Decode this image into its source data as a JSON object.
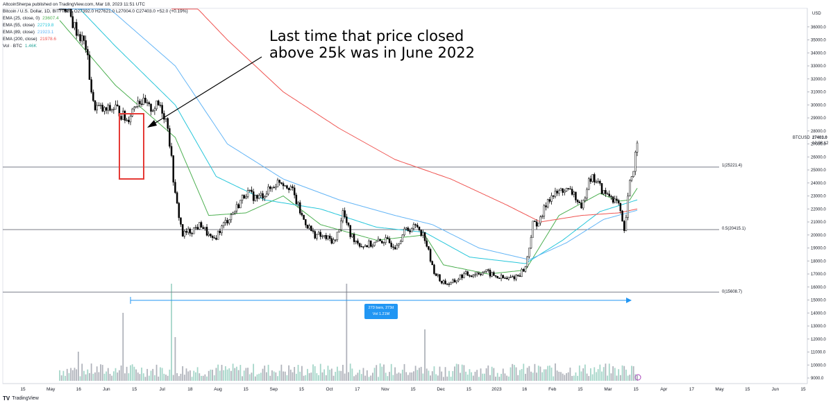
{
  "header": {
    "published_line": "AltcoinSherpa published on TradingView.com, Mar 18, 2023 11:51 UTC",
    "symbol_line": "Bitcoin / U.S. Dollar, 1D, BITFINEX  O27392.0  H27621.0  L27004.0  C27403.0  +52.0 (+0.19%)",
    "indicators": [
      {
        "label": "EMA (25, close, 0)",
        "value": "23607.4",
        "color": "#4caf50"
      },
      {
        "label": "EMA (55, close)",
        "value": "22719.8",
        "color": "#26c6da"
      },
      {
        "label": "EMA (89, close)",
        "value": "21923.1",
        "color": "#64b5f6"
      },
      {
        "label": "EMA (200, close)",
        "value": "21978.6",
        "color": "#ef5350"
      },
      {
        "label": "Vol · BTC",
        "value": "1.46K",
        "color": "#26a69a"
      }
    ]
  },
  "annotation": {
    "line1": "Last time that price closed",
    "line2": "above 25k was in June 2022"
  },
  "range_measure": {
    "line1": "273 bars, 273d",
    "line2": "Vol 1.21M"
  },
  "fib_labels": {
    "top": "1(25221.4)",
    "mid": "0.5(20415.1)",
    "bottom": "0(15608.7)"
  },
  "price_tag": {
    "symbol": "BTCUSD",
    "price": "27403.0",
    "countdown": "12:08:12"
  },
  "footer": {
    "brand": "TradingView"
  },
  "chart_data": {
    "type": "candlestick",
    "currency": "USD",
    "ylim": [
      9000,
      37000
    ],
    "y_ticks": [
      36000,
      35000,
      34000,
      33000,
      32000,
      31000,
      30000,
      29000,
      28000,
      27000,
      26000,
      25000,
      24000,
      23000,
      22000,
      21000,
      20000,
      19000,
      18000,
      17000,
      16000,
      15000,
      14000,
      13000,
      12000,
      11000,
      10000,
      9000
    ],
    "x_labels": [
      "15",
      "May",
      "16",
      "Jun",
      "15",
      "Jul",
      "18",
      "Aug",
      "15",
      "Sep",
      "15",
      "Oct",
      "17",
      "Nov",
      "15",
      "Dec",
      "15",
      "2023",
      "16",
      "Feb",
      "15",
      "Mar",
      "15",
      "Apr",
      "17",
      "May",
      "15",
      "Jun",
      "15"
    ],
    "horizontal_levels": [
      {
        "name": "1",
        "value": 25221.4
      },
      {
        "name": "0.5",
        "value": 20415.1
      },
      {
        "name": "0",
        "value": 15608.7
      }
    ],
    "price_path": [
      {
        "t": 0,
        "v": 38500
      },
      {
        "t": 8,
        "v": 36000
      },
      {
        "t": 14,
        "v": 34500
      },
      {
        "t": 18,
        "v": 30000
      },
      {
        "t": 24,
        "v": 29500
      },
      {
        "t": 30,
        "v": 29800
      },
      {
        "t": 36,
        "v": 28800
      },
      {
        "t": 42,
        "v": 30500
      },
      {
        "t": 48,
        "v": 29700
      },
      {
        "t": 54,
        "v": 30000
      },
      {
        "t": 58,
        "v": 28500
      },
      {
        "t": 62,
        "v": 23000
      },
      {
        "t": 64,
        "v": 21500
      },
      {
        "t": 66,
        "v": 20000
      },
      {
        "t": 70,
        "v": 20300
      },
      {
        "t": 76,
        "v": 20800
      },
      {
        "t": 82,
        "v": 19500
      },
      {
        "t": 88,
        "v": 20800
      },
      {
        "t": 94,
        "v": 21900
      },
      {
        "t": 100,
        "v": 23300
      },
      {
        "t": 106,
        "v": 22800
      },
      {
        "t": 112,
        "v": 23400
      },
      {
        "t": 118,
        "v": 24200
      },
      {
        "t": 124,
        "v": 23700
      },
      {
        "t": 130,
        "v": 21400
      },
      {
        "t": 136,
        "v": 20100
      },
      {
        "t": 142,
        "v": 19800
      },
      {
        "t": 148,
        "v": 19500
      },
      {
        "t": 152,
        "v": 21800
      },
      {
        "t": 156,
        "v": 20000
      },
      {
        "t": 162,
        "v": 19200
      },
      {
        "t": 168,
        "v": 19300
      },
      {
        "t": 174,
        "v": 19600
      },
      {
        "t": 180,
        "v": 19200
      },
      {
        "t": 186,
        "v": 20400
      },
      {
        "t": 192,
        "v": 20700
      },
      {
        "t": 196,
        "v": 19800
      },
      {
        "t": 200,
        "v": 17500
      },
      {
        "t": 204,
        "v": 16500
      },
      {
        "t": 210,
        "v": 16200
      },
      {
        "t": 216,
        "v": 16900
      },
      {
        "t": 222,
        "v": 17000
      },
      {
        "t": 228,
        "v": 17200
      },
      {
        "t": 234,
        "v": 16800
      },
      {
        "t": 240,
        "v": 16600
      },
      {
        "t": 246,
        "v": 16900
      },
      {
        "t": 250,
        "v": 17500
      },
      {
        "t": 254,
        "v": 20800
      },
      {
        "t": 258,
        "v": 21100
      },
      {
        "t": 262,
        "v": 22800
      },
      {
        "t": 266,
        "v": 23100
      },
      {
        "t": 270,
        "v": 23500
      },
      {
        "t": 276,
        "v": 23200
      },
      {
        "t": 280,
        "v": 21800
      },
      {
        "t": 284,
        "v": 24500
      },
      {
        "t": 288,
        "v": 24200
      },
      {
        "t": 292,
        "v": 23200
      },
      {
        "t": 296,
        "v": 23000
      },
      {
        "t": 300,
        "v": 22300
      },
      {
        "t": 303,
        "v": 20100
      },
      {
        "t": 306,
        "v": 24000
      },
      {
        "t": 308,
        "v": 25100
      },
      {
        "t": 310,
        "v": 27403
      }
    ],
    "ema_series": [
      {
        "name": "EMA (25, close, 0)",
        "color": "#4caf50",
        "points": [
          {
            "t": 0,
            "v": 36500
          },
          {
            "t": 30,
            "v": 31500
          },
          {
            "t": 62,
            "v": 27500
          },
          {
            "t": 80,
            "v": 21500
          },
          {
            "t": 100,
            "v": 21700
          },
          {
            "t": 120,
            "v": 23000
          },
          {
            "t": 140,
            "v": 20800
          },
          {
            "t": 170,
            "v": 19600
          },
          {
            "t": 196,
            "v": 20000
          },
          {
            "t": 206,
            "v": 17700
          },
          {
            "t": 230,
            "v": 17000
          },
          {
            "t": 250,
            "v": 17300
          },
          {
            "t": 268,
            "v": 21500
          },
          {
            "t": 290,
            "v": 23200
          },
          {
            "t": 300,
            "v": 22600
          },
          {
            "t": 306,
            "v": 22700
          },
          {
            "t": 310,
            "v": 23600
          }
        ]
      },
      {
        "name": "EMA (55, close)",
        "color": "#26c6da",
        "points": [
          {
            "t": 0,
            "v": 39000
          },
          {
            "t": 30,
            "v": 34500
          },
          {
            "t": 62,
            "v": 30000
          },
          {
            "t": 84,
            "v": 24500
          },
          {
            "t": 110,
            "v": 22700
          },
          {
            "t": 140,
            "v": 22000
          },
          {
            "t": 170,
            "v": 20600
          },
          {
            "t": 196,
            "v": 20200
          },
          {
            "t": 220,
            "v": 18300
          },
          {
            "t": 250,
            "v": 17800
          },
          {
            "t": 270,
            "v": 19600
          },
          {
            "t": 290,
            "v": 21800
          },
          {
            "t": 310,
            "v": 22700
          }
        ]
      },
      {
        "name": "EMA (89, close)",
        "color": "#64b5f6",
        "points": [
          {
            "t": 0,
            "v": 40500
          },
          {
            "t": 30,
            "v": 37000
          },
          {
            "t": 62,
            "v": 33000
          },
          {
            "t": 90,
            "v": 27000
          },
          {
            "t": 120,
            "v": 24300
          },
          {
            "t": 150,
            "v": 22700
          },
          {
            "t": 180,
            "v": 21500
          },
          {
            "t": 200,
            "v": 20800
          },
          {
            "t": 225,
            "v": 19000
          },
          {
            "t": 252,
            "v": 18100
          },
          {
            "t": 272,
            "v": 19400
          },
          {
            "t": 292,
            "v": 21200
          },
          {
            "t": 310,
            "v": 21900
          }
        ]
      },
      {
        "name": "EMA (200, close)",
        "color": "#ef5350",
        "points": [
          {
            "t": 60,
            "v": 39500
          },
          {
            "t": 90,
            "v": 35000
          },
          {
            "t": 120,
            "v": 31000
          },
          {
            "t": 150,
            "v": 28200
          },
          {
            "t": 180,
            "v": 25800
          },
          {
            "t": 210,
            "v": 24300
          },
          {
            "t": 240,
            "v": 22300
          },
          {
            "t": 258,
            "v": 21000
          },
          {
            "t": 280,
            "v": 21500
          },
          {
            "t": 300,
            "v": 21700
          },
          {
            "t": 310,
            "v": 22000
          }
        ]
      }
    ],
    "volume_spikes": [
      {
        "t": 34,
        "level": 0.7
      },
      {
        "t": 60,
        "level": 1.0
      },
      {
        "t": 154,
        "level": 1.0
      },
      {
        "t": 196,
        "level": 0.53
      },
      {
        "t": 62,
        "level": 0.45
      },
      {
        "t": 10,
        "level": 0.3
      },
      {
        "t": 300,
        "level": 0.12
      },
      {
        "t": 308,
        "level": 0.15
      }
    ]
  }
}
